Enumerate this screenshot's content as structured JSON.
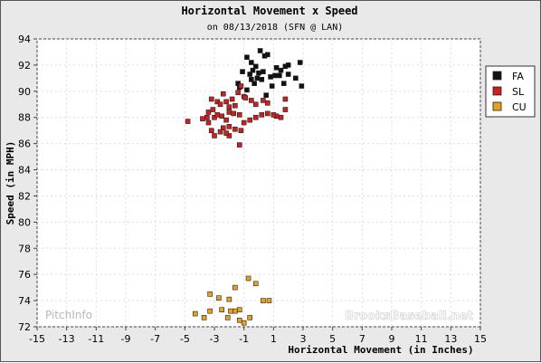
{
  "chart_data": {
    "type": "scatter",
    "title": "Horizontal Movement x Speed",
    "subtitle": "on 08/13/2018 (SFN @ LAN)",
    "xlabel": "Horizontal Movement (in Inches)",
    "ylabel": "Speed (in MPH)",
    "xlim": [
      -15,
      15
    ],
    "ylim": [
      72,
      94
    ],
    "xticks": [
      "-15",
      "-13",
      "-11",
      "-9",
      "-7",
      "-5",
      "-3",
      "-1",
      "1",
      "3",
      "5",
      "7",
      "9",
      "11",
      "13",
      "15"
    ],
    "yticks": [
      "72",
      "74",
      "76",
      "78",
      "80",
      "82",
      "84",
      "86",
      "88",
      "90",
      "92",
      "94"
    ],
    "grid": true,
    "legend_position": "right",
    "series": [
      {
        "name": "FA",
        "color": "#111111",
        "points": [
          [
            0.1,
            93.1
          ],
          [
            0.4,
            92.7
          ],
          [
            0.6,
            92.8
          ],
          [
            -0.8,
            92.6
          ],
          [
            -0.5,
            92.2
          ],
          [
            -0.2,
            91.9
          ],
          [
            -0.4,
            91.6
          ],
          [
            0.0,
            91.4
          ],
          [
            0.3,
            91.5
          ],
          [
            -0.1,
            91.0
          ],
          [
            -0.6,
            91.3
          ],
          [
            -1.1,
            91.5
          ],
          [
            -0.5,
            90.9
          ],
          [
            0.8,
            91.1
          ],
          [
            1.2,
            91.8
          ],
          [
            1.5,
            91.6
          ],
          [
            1.8,
            91.9
          ],
          [
            2.0,
            92.0
          ],
          [
            2.8,
            92.2
          ],
          [
            1.4,
            91.2
          ],
          [
            2.0,
            91.3
          ],
          [
            2.5,
            91.0
          ],
          [
            -0.3,
            90.6
          ],
          [
            0.9,
            90.4
          ],
          [
            1.7,
            90.6
          ],
          [
            2.9,
            90.4
          ],
          [
            -1.4,
            90.6
          ],
          [
            -1.3,
            90.3
          ],
          [
            -0.8,
            90.1
          ],
          [
            0.5,
            89.7
          ],
          [
            1.1,
            91.2
          ],
          [
            0.2,
            90.9
          ]
        ]
      },
      {
        "name": "SL",
        "color": "#cc1f1f",
        "points": [
          [
            -4.8,
            87.7
          ],
          [
            -3.8,
            87.9
          ],
          [
            -3.5,
            88.0
          ],
          [
            -3.2,
            89.4
          ],
          [
            -2.8,
            89.2
          ],
          [
            -3.4,
            88.4
          ],
          [
            -3.1,
            88.6
          ],
          [
            -2.6,
            89.0
          ],
          [
            -2.4,
            89.8
          ],
          [
            -2.2,
            89.2
          ],
          [
            -2.0,
            88.8
          ],
          [
            -1.8,
            89.4
          ],
          [
            -1.6,
            88.9
          ],
          [
            -1.4,
            89.9
          ],
          [
            -1.2,
            90.4
          ],
          [
            -1.0,
            89.6
          ],
          [
            -0.9,
            89.5
          ],
          [
            -0.5,
            89.3
          ],
          [
            -3.0,
            88.0
          ],
          [
            -2.8,
            88.2
          ],
          [
            -2.5,
            88.1
          ],
          [
            -2.2,
            87.8
          ],
          [
            -2.0,
            88.4
          ],
          [
            -1.7,
            88.3
          ],
          [
            -1.3,
            88.2
          ],
          [
            -1.0,
            87.6
          ],
          [
            -0.6,
            87.8
          ],
          [
            -0.2,
            88.0
          ],
          [
            0.2,
            88.2
          ],
          [
            0.6,
            88.3
          ],
          [
            -3.4,
            87.6
          ],
          [
            -3.2,
            87.0
          ],
          [
            -2.4,
            87.2
          ],
          [
            -2.0,
            87.3
          ],
          [
            -1.6,
            87.1
          ],
          [
            -1.2,
            87.0
          ],
          [
            -2.6,
            86.9
          ],
          [
            -3.0,
            86.6
          ],
          [
            -2.0,
            86.6
          ],
          [
            -1.3,
            85.9
          ],
          [
            1.2,
            88.1
          ],
          [
            1.5,
            88.0
          ],
          [
            1.8,
            88.6
          ],
          [
            1.8,
            89.4
          ],
          [
            0.3,
            89.3
          ],
          [
            0.6,
            89.1
          ],
          [
            -0.2,
            89.0
          ],
          [
            1.0,
            88.2
          ],
          [
            -2.2,
            86.8
          ]
        ]
      },
      {
        "name": "CU",
        "color": "#e8a020",
        "points": [
          [
            -0.7,
            75.7
          ],
          [
            -0.2,
            75.3
          ],
          [
            -1.6,
            75.0
          ],
          [
            -3.3,
            74.5
          ],
          [
            -2.7,
            74.2
          ],
          [
            -2.0,
            74.1
          ],
          [
            0.3,
            74.0
          ],
          [
            0.7,
            74.0
          ],
          [
            -2.5,
            73.3
          ],
          [
            -3.3,
            73.2
          ],
          [
            -1.9,
            73.2
          ],
          [
            -1.6,
            73.2
          ],
          [
            -1.3,
            73.3
          ],
          [
            -4.3,
            73.0
          ],
          [
            -3.7,
            72.7
          ],
          [
            -2.1,
            72.7
          ],
          [
            -1.3,
            72.5
          ],
          [
            -0.6,
            72.7
          ],
          [
            -1.0,
            72.3
          ]
        ]
      }
    ]
  },
  "watermarks": {
    "left": "PitchInfo",
    "right": "BrooksBaseball.net"
  }
}
